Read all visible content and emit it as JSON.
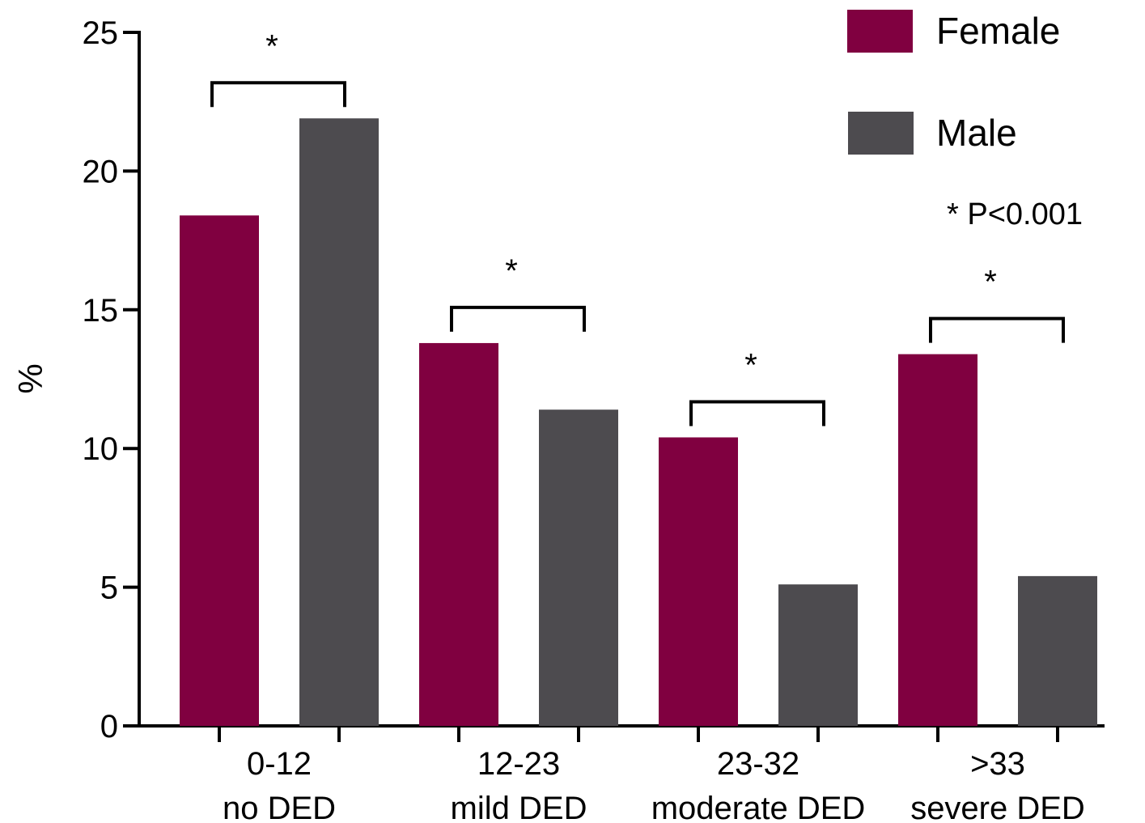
{
  "chart_data": {
    "type": "bar",
    "title": "",
    "xlabel": "",
    "ylabel": "%",
    "ylim": [
      0,
      25
    ],
    "yticks": [
      0,
      5,
      10,
      15,
      20,
      25
    ],
    "categories": [
      {
        "range": "0-12",
        "label": "no DED"
      },
      {
        "range": "12-23",
        "label": "mild DED"
      },
      {
        "range": "23-32",
        "label": "moderate DED"
      },
      {
        "range": ">33",
        "label": "severe DED"
      }
    ],
    "series": [
      {
        "name": "Female",
        "color": "#800040",
        "values": [
          18.4,
          13.8,
          10.4,
          13.4
        ]
      },
      {
        "name": "Male",
        "color": "#4d4b4f",
        "values": [
          21.9,
          11.4,
          5.1,
          5.4
        ]
      }
    ],
    "significance": {
      "marker": "*",
      "note": "* P<0.001"
    },
    "legend_position": "top-right",
    "grid": false
  }
}
